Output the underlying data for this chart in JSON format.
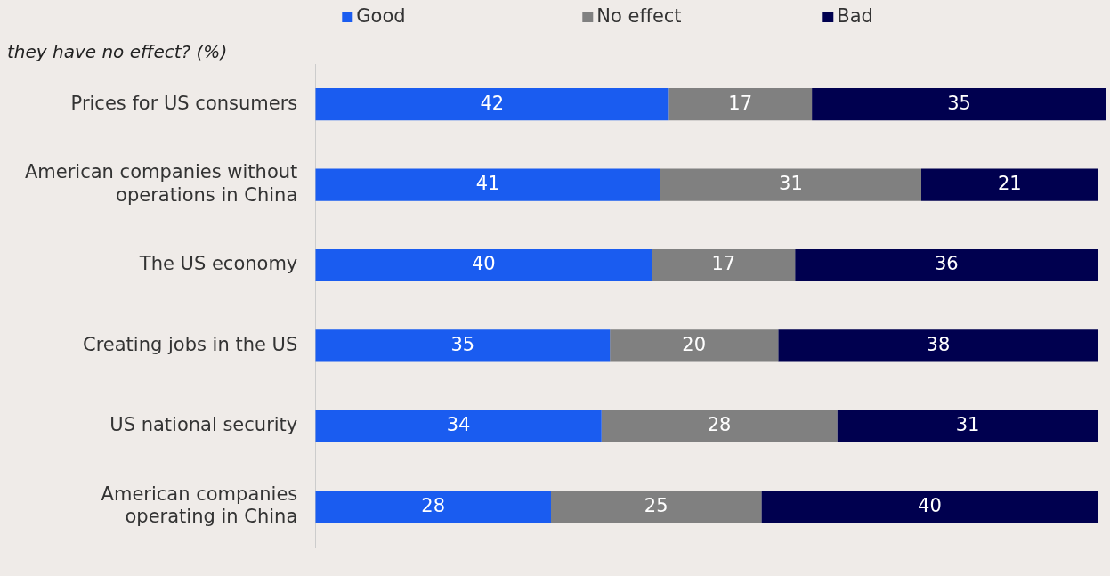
{
  "chart_data": {
    "type": "bar",
    "orientation": "horizontal",
    "stacked": true,
    "title": "they have no effect? (%)",
    "categories": [
      "Prices for US consumers",
      "American companies without operations in China",
      "The US economy",
      "Creating jobs in the US",
      "US national security",
      "American companies operating in China"
    ],
    "series": [
      {
        "name": "Good",
        "color": "#1a5cf0",
        "values": [
          42,
          41,
          40,
          35,
          34,
          28
        ]
      },
      {
        "name": "No effect",
        "color": "#808080",
        "values": [
          17,
          31,
          17,
          20,
          28,
          25
        ]
      },
      {
        "name": "Bad",
        "color": "#00004f",
        "values": [
          35,
          21,
          36,
          38,
          31,
          40
        ]
      }
    ],
    "data_labels": true,
    "legend": "top"
  }
}
